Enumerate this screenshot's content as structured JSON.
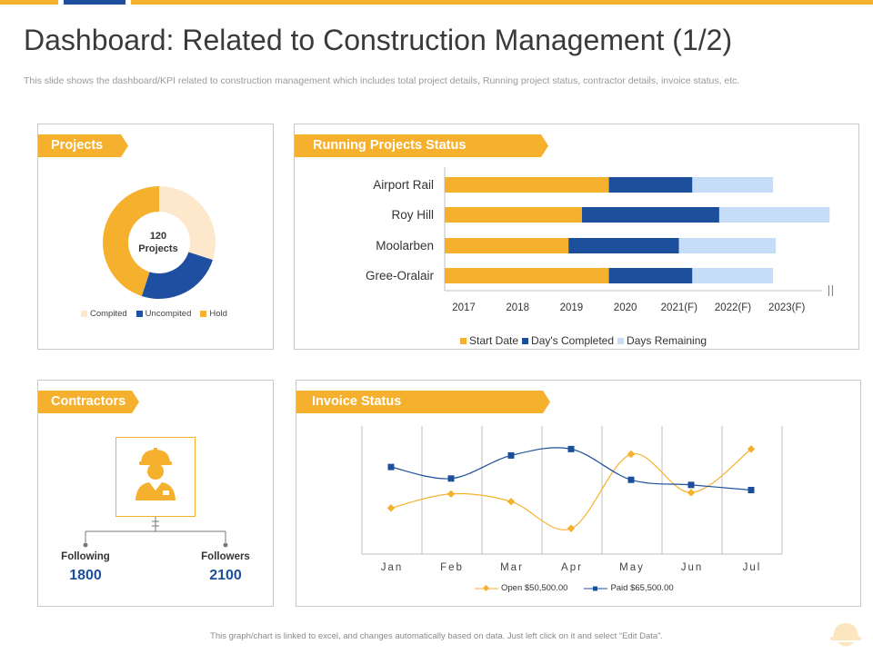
{
  "header": {
    "title": "Dashboard: Related to Construction Management (1/2)",
    "subtitle": "This slide shows the dashboard/KPI related to construction management which includes total project details, Running project status, contractor details, invoice status, etc."
  },
  "colors": {
    "accent": "#f5b12e",
    "navy": "#1b4f9c",
    "light": "#fce8c8",
    "sky": "#c5ddf6"
  },
  "projects": {
    "title": "Projects",
    "center_count": "120",
    "center_label": "Projects",
    "chart_data": {
      "type": "pie",
      "series": [
        {
          "name": "Compited",
          "value": 30,
          "color": "#fde8cb"
        },
        {
          "name": "Uncompited",
          "value": 25,
          "color": "#1e4fa0"
        },
        {
          "name": "Hold",
          "value": 45,
          "color": "#f5b12e"
        }
      ]
    },
    "legend": [
      "Compited",
      "Uncompited",
      "Hold"
    ]
  },
  "running": {
    "title": "Running Projects Status",
    "chart_data": {
      "type": "bar",
      "orientation": "horizontal-stacked",
      "categories": [
        "Airport Rail",
        "Roy Hill",
        "Moolarben",
        "Gree-Oralair"
      ],
      "x_ticks": [
        "2017",
        "2018",
        "2019",
        "2020",
        "2021(F)",
        "2022(F)",
        "2023(F)"
      ],
      "x_start": 0,
      "x_end": 7,
      "series": [
        {
          "name": "Start Date",
          "color": "#f5b12e",
          "values": [
            3.05,
            2.55,
            2.3,
            3.05
          ]
        },
        {
          "name": "Day's Completed",
          "color": "#1b4f9c",
          "values": [
            1.55,
            2.55,
            2.05,
            1.55
          ]
        },
        {
          "name": "Days Remaining",
          "color": "#c5ddf6",
          "values": [
            1.5,
            2.05,
            1.8,
            1.5
          ]
        }
      ]
    }
  },
  "contractors": {
    "title": "Contractors",
    "following_label": "Following",
    "following_value": "1800",
    "followers_label": "Followers",
    "followers_value": "2100"
  },
  "invoice": {
    "title": "Invoice Status",
    "chart_data": {
      "type": "line",
      "categories": [
        "Jan",
        "Feb",
        "Mar",
        "Apr",
        "May",
        "Jun",
        "Jul"
      ],
      "ylim": [
        0,
        100
      ],
      "series": [
        {
          "name": "Open $50,500.00",
          "color": "#f5b12e",
          "marker": "diamond",
          "values": [
            36,
            47,
            41,
            20,
            78,
            48,
            82
          ]
        },
        {
          "name": "Paid $65,500.00",
          "color": "#1b4f9c",
          "marker": "square",
          "values": [
            68,
            59,
            77,
            82,
            58,
            54,
            50
          ]
        }
      ]
    }
  },
  "footer": {
    "note": "This graph/chart is linked to excel, and changes automatically based on data. Just left click on it and select “Edit Data”."
  }
}
